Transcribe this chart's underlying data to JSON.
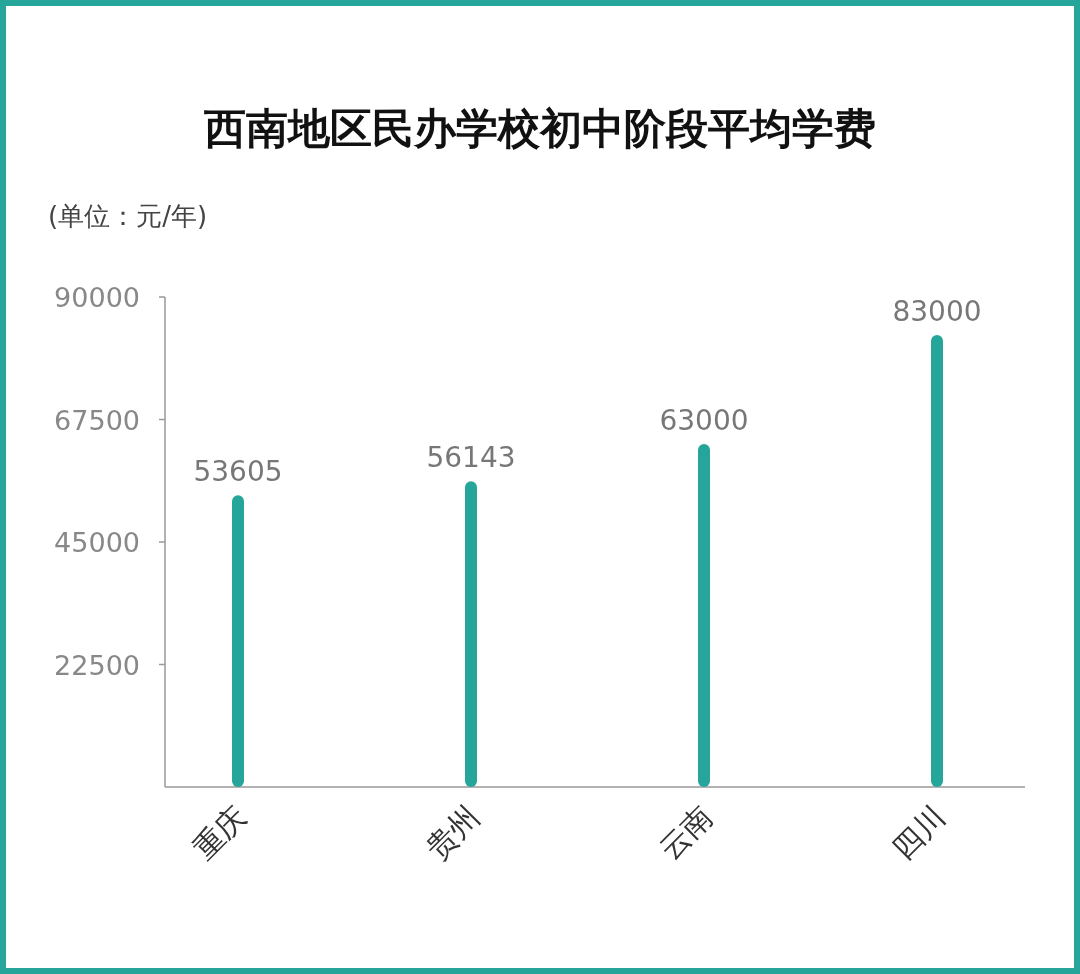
{
  "chart_data": {
    "type": "bar",
    "title": "西南地区民办学校初中阶段平均学费",
    "subtitle": "(单位：元/年)",
    "categories": [
      "重庆",
      "贵州",
      "云南",
      "四川"
    ],
    "values": [
      53605,
      56143,
      63000,
      83000
    ],
    "color": "#26a69a",
    "ylim": [
      0,
      90000
    ],
    "yticks": [
      22500,
      45000,
      67500,
      90000
    ],
    "data_labels": true
  }
}
